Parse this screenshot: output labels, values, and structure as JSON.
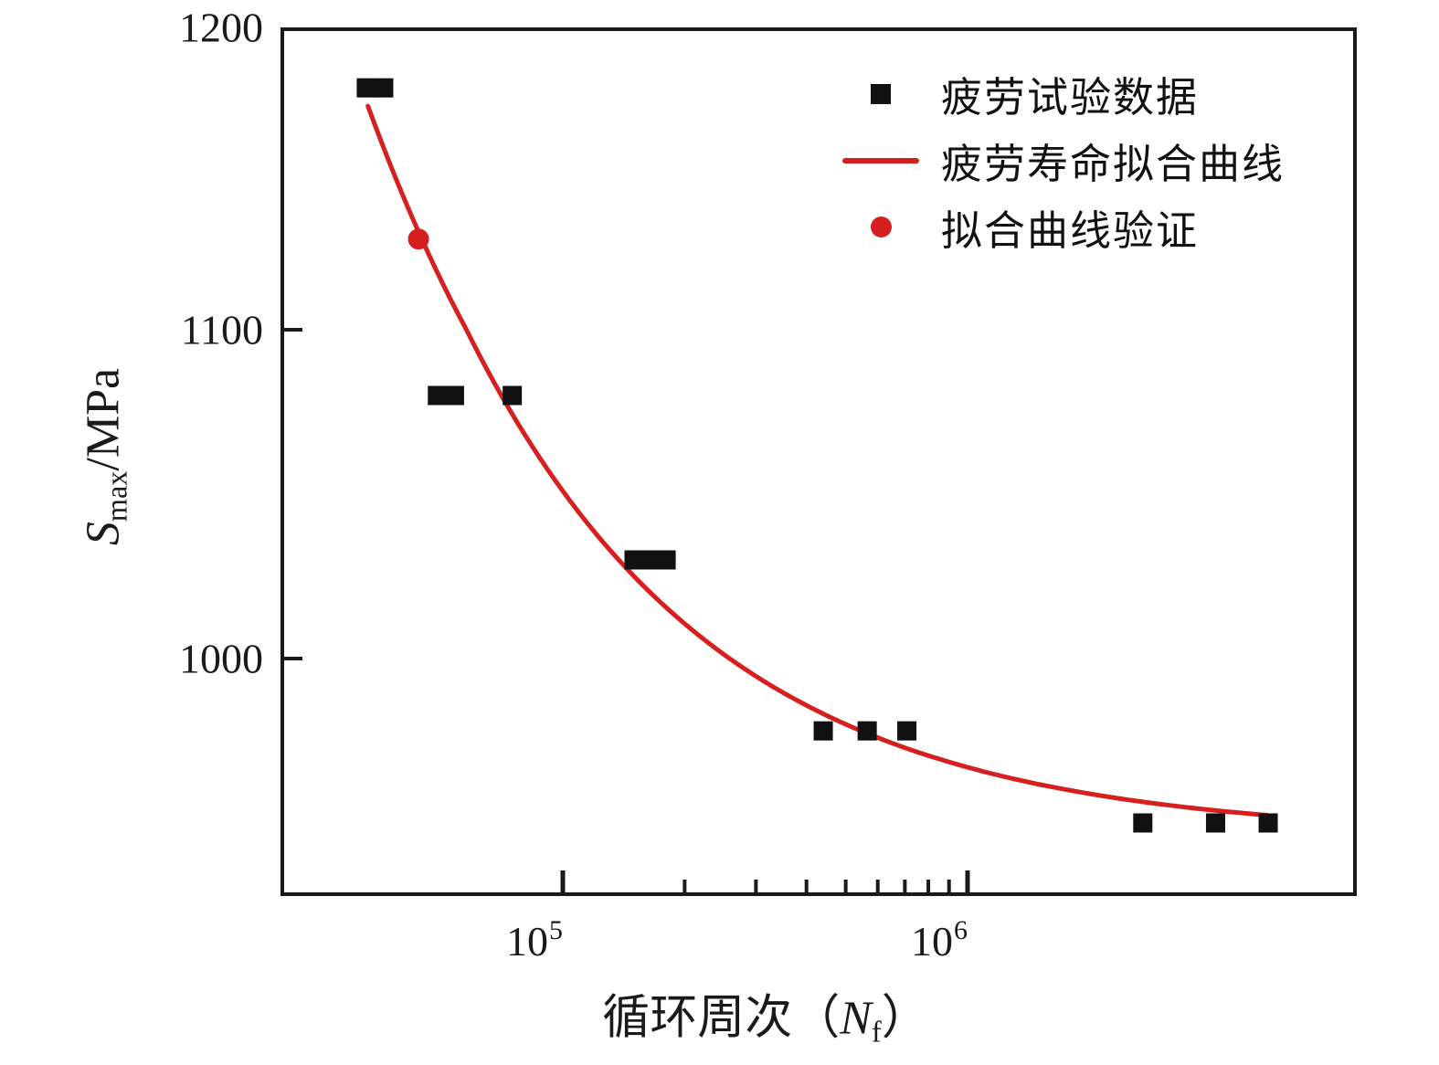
{
  "chart_data": {
    "type": "scatter",
    "title": "",
    "xlabel_parts": {
      "prefix": "循环周次（",
      "symbol": "N",
      "subscript": "f",
      "suffix": "）"
    },
    "ylabel_parts": {
      "symbol": "S",
      "subscript": "max",
      "suffix": "/MPa"
    },
    "x_axis": {
      "scale": "log",
      "min": 20000,
      "max": 9200000,
      "label_base": "10",
      "major_ticks": [
        {
          "value": 100000,
          "exponent": "5"
        },
        {
          "value": 1000000,
          "exponent": "6"
        }
      ],
      "minor_ticks": [
        200000,
        300000,
        400000,
        500000,
        600000,
        700000,
        800000,
        900000
      ]
    },
    "y_axis": {
      "scale": "linear",
      "min": 924,
      "max": 1200,
      "unit": "MPa",
      "ticks": [
        1200,
        1100,
        1000
      ]
    },
    "series": [
      {
        "name": "疲劳试验数据",
        "type": "scatter",
        "marker": "square",
        "color": "#111111",
        "points": [
          [
            32700,
            1180
          ],
          [
            36100,
            1180
          ],
          [
            49000,
            1080
          ],
          [
            54000,
            1080
          ],
          [
            75000,
            1080
          ],
          [
            150000,
            1030
          ],
          [
            166000,
            1030
          ],
          [
            180000,
            1030
          ],
          [
            440000,
            978
          ],
          [
            565000,
            978
          ],
          [
            708000,
            978
          ],
          [
            2710000,
            950
          ],
          [
            4100000,
            950
          ],
          [
            5530000,
            950
          ]
        ]
      },
      {
        "name": "疲劳寿命拟合曲线",
        "type": "line",
        "color": "#d62020",
        "fit_curve": {
          "model": "S = s_inf + amplitude * (N / n_ref)^(-exponent)",
          "s_inf": 946,
          "amplitude": 228,
          "exponent": 0.7,
          "n_ref": 33000,
          "n_start": 33000,
          "n_end": 5500000
        }
      },
      {
        "name": "拟合曲线验证",
        "type": "scatter",
        "marker": "circle",
        "color": "#d62020",
        "points": [
          [
            44000,
            1130
          ]
        ]
      }
    ],
    "legend": [
      {
        "marker": "square",
        "color": "#111111",
        "label": "疲劳试验数据"
      },
      {
        "marker": "line",
        "color": "#d62020",
        "label": "疲劳寿命拟合曲线"
      },
      {
        "marker": "circle",
        "color": "#d62020",
        "label": "拟合曲线验证"
      }
    ],
    "colors": {
      "accent_red": "#d62020",
      "marker_black": "#111111",
      "axis": "#1a1a1a"
    }
  }
}
